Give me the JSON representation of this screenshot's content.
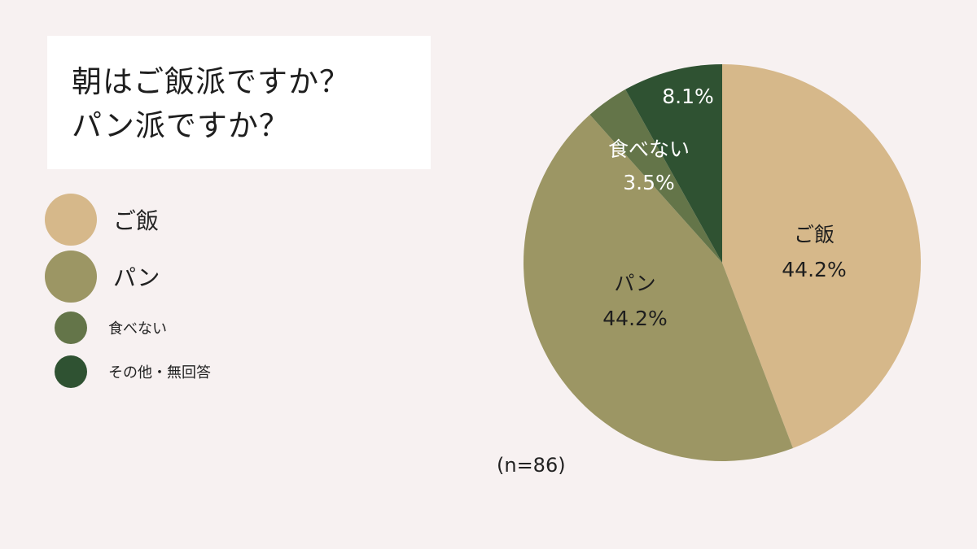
{
  "title": {
    "line1": "朝はご飯派ですか？",
    "line2": "パン派ですか？"
  },
  "legend": [
    {
      "label": "ご飯",
      "color": "#d6b88a",
      "size": "big"
    },
    {
      "label": "パン",
      "color": "#9c9664",
      "size": "big"
    },
    {
      "label": "食べない",
      "color": "#647549",
      "size": "small"
    },
    {
      "label": "その他・無回答",
      "color": "#2f5232",
      "size": "small"
    }
  ],
  "sample_size": "(n=86)",
  "chart_data": {
    "type": "pie",
    "title": "朝はご飯派ですか？パン派ですか？",
    "slices": [
      {
        "label": "ご飯",
        "value": 44.2,
        "value_label": "44.2%",
        "color": "#d6b88a",
        "text_color": "#1e1e1e"
      },
      {
        "label": "パン",
        "value": 44.2,
        "value_label": "44.2%",
        "color": "#9c9664",
        "text_color": "#1e1e1e"
      },
      {
        "label": "食べない",
        "value": 3.5,
        "value_label": "3.5%",
        "color": "#647549",
        "text_color": "#ffffff"
      },
      {
        "label": "",
        "value": 8.1,
        "value_label": "8.1%",
        "color": "#2f5232",
        "text_color": "#ffffff"
      }
    ],
    "start_angle_deg": 0,
    "direction": "clockwise",
    "legend_position": "left",
    "note": "(n=86)"
  }
}
